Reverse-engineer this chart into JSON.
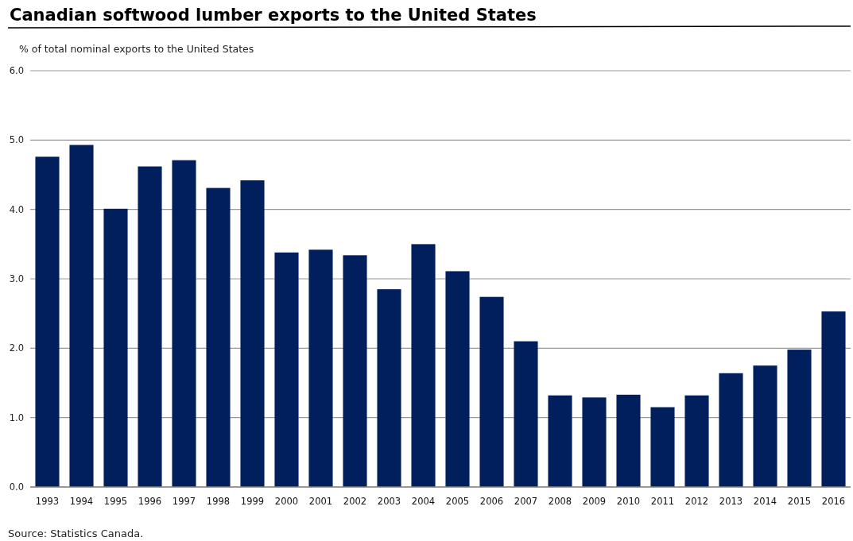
{
  "chart_data": {
    "type": "bar",
    "title": "Canadian softwood lumber exports to the United States",
    "ylabel": "% of total nominal exports to the United States",
    "categories": [
      "1993",
      "1994",
      "1995",
      "1996",
      "1997",
      "1998",
      "1999",
      "2000",
      "2001",
      "2002",
      "2003",
      "2004",
      "2005",
      "2006",
      "2007",
      "2008",
      "2009",
      "2010",
      "2011",
      "2012",
      "2013",
      "2014",
      "2015",
      "2016"
    ],
    "values": [
      4.76,
      4.93,
      4.01,
      4.62,
      4.71,
      4.31,
      4.42,
      3.38,
      3.42,
      3.34,
      2.85,
      3.5,
      3.11,
      2.74,
      2.1,
      1.32,
      1.29,
      1.33,
      1.15,
      1.32,
      1.64,
      1.75,
      1.98,
      2.53
    ],
    "color": "#001f5c",
    "ylim": [
      0,
      6
    ],
    "yticks": [
      {
        "value": 0,
        "label": "0.0"
      },
      {
        "value": 1,
        "label": "1.0"
      },
      {
        "value": 2,
        "label": "2.0"
      },
      {
        "value": 3,
        "label": "3.0"
      },
      {
        "value": 4,
        "label": "4.0"
      },
      {
        "value": 5,
        "label": "5.0"
      },
      {
        "value": 6,
        "label": "6.0"
      }
    ],
    "grid": "y",
    "annotations": [
      "Source: Statistics Canada."
    ]
  }
}
